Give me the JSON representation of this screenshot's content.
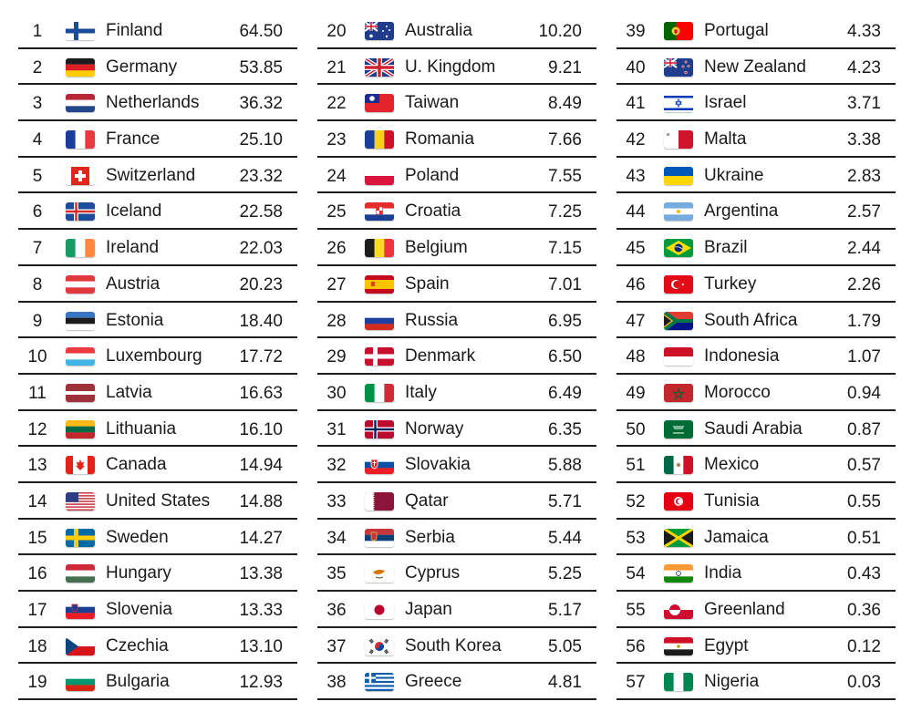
{
  "columns": [
    {
      "rows": [
        {
          "rank": "1",
          "country": "Finland",
          "value": "64.50",
          "flag": "finland-flag-icon"
        },
        {
          "rank": "2",
          "country": "Germany",
          "value": "53.85",
          "flag": "germany-flag-icon"
        },
        {
          "rank": "3",
          "country": "Netherlands",
          "value": "36.32",
          "flag": "netherlands-flag-icon"
        },
        {
          "rank": "4",
          "country": "France",
          "value": "25.10",
          "flag": "france-flag-icon"
        },
        {
          "rank": "5",
          "country": "Switzerland",
          "value": "23.32",
          "flag": "switzerland-flag-icon"
        },
        {
          "rank": "6",
          "country": "Iceland",
          "value": "22.58",
          "flag": "iceland-flag-icon"
        },
        {
          "rank": "7",
          "country": "Ireland",
          "value": "22.03",
          "flag": "ireland-flag-icon"
        },
        {
          "rank": "8",
          "country": "Austria",
          "value": "20.23",
          "flag": "austria-flag-icon"
        },
        {
          "rank": "9",
          "country": "Estonia",
          "value": "18.40",
          "flag": "estonia-flag-icon"
        },
        {
          "rank": "10",
          "country": "Luxembourg",
          "value": "17.72",
          "flag": "luxembourg-flag-icon"
        },
        {
          "rank": "11",
          "country": "Latvia",
          "value": "16.63",
          "flag": "latvia-flag-icon"
        },
        {
          "rank": "12",
          "country": "Lithuania",
          "value": "16.10",
          "flag": "lithuania-flag-icon"
        },
        {
          "rank": "13",
          "country": "Canada",
          "value": "14.94",
          "flag": "canada-flag-icon"
        },
        {
          "rank": "14",
          "country": "United States",
          "value": "14.88",
          "flag": "united-states-flag-icon"
        },
        {
          "rank": "15",
          "country": "Sweden",
          "value": "14.27",
          "flag": "sweden-flag-icon"
        },
        {
          "rank": "16",
          "country": "Hungary",
          "value": "13.38",
          "flag": "hungary-flag-icon"
        },
        {
          "rank": "17",
          "country": "Slovenia",
          "value": "13.33",
          "flag": "slovenia-flag-icon"
        },
        {
          "rank": "18",
          "country": "Czechia",
          "value": "13.10",
          "flag": "czechia-flag-icon"
        },
        {
          "rank": "19",
          "country": "Bulgaria",
          "value": "12.93",
          "flag": "bulgaria-flag-icon"
        }
      ]
    },
    {
      "rows": [
        {
          "rank": "20",
          "country": "Australia",
          "value": "10.20",
          "flag": "australia-flag-icon"
        },
        {
          "rank": "21",
          "country": "U. Kingdom",
          "value": "9.21",
          "flag": "united-kingdom-flag-icon"
        },
        {
          "rank": "22",
          "country": "Taiwan",
          "value": "8.49",
          "flag": "taiwan-flag-icon"
        },
        {
          "rank": "23",
          "country": "Romania",
          "value": "7.66",
          "flag": "romania-flag-icon"
        },
        {
          "rank": "24",
          "country": "Poland",
          "value": "7.55",
          "flag": "poland-flag-icon"
        },
        {
          "rank": "25",
          "country": "Croatia",
          "value": "7.25",
          "flag": "croatia-flag-icon"
        },
        {
          "rank": "26",
          "country": "Belgium",
          "value": "7.15",
          "flag": "belgium-flag-icon"
        },
        {
          "rank": "27",
          "country": "Spain",
          "value": "7.01",
          "flag": "spain-flag-icon"
        },
        {
          "rank": "28",
          "country": "Russia",
          "value": "6.95",
          "flag": "russia-flag-icon"
        },
        {
          "rank": "29",
          "country": "Denmark",
          "value": "6.50",
          "flag": "denmark-flag-icon"
        },
        {
          "rank": "30",
          "country": "Italy",
          "value": "6.49",
          "flag": "italy-flag-icon"
        },
        {
          "rank": "31",
          "country": "Norway",
          "value": "6.35",
          "flag": "norway-flag-icon"
        },
        {
          "rank": "32",
          "country": "Slovakia",
          "value": "5.88",
          "flag": "slovakia-flag-icon"
        },
        {
          "rank": "33",
          "country": "Qatar",
          "value": "5.71",
          "flag": "qatar-flag-icon"
        },
        {
          "rank": "34",
          "country": "Serbia",
          "value": "5.44",
          "flag": "serbia-flag-icon"
        },
        {
          "rank": "35",
          "country": "Cyprus",
          "value": "5.25",
          "flag": "cyprus-flag-icon"
        },
        {
          "rank": "36",
          "country": "Japan",
          "value": "5.17",
          "flag": "japan-flag-icon"
        },
        {
          "rank": "37",
          "country": "South Korea",
          "value": "5.05",
          "flag": "south-korea-flag-icon"
        },
        {
          "rank": "38",
          "country": "Greece",
          "value": "4.81",
          "flag": "greece-flag-icon"
        }
      ]
    },
    {
      "rows": [
        {
          "rank": "39",
          "country": "Portugal",
          "value": "4.33",
          "flag": "portugal-flag-icon"
        },
        {
          "rank": "40",
          "country": "New Zealand",
          "value": "4.23",
          "flag": "new-zealand-flag-icon"
        },
        {
          "rank": "41",
          "country": "Israel",
          "value": "3.71",
          "flag": "israel-flag-icon"
        },
        {
          "rank": "42",
          "country": "Malta",
          "value": "3.38",
          "flag": "malta-flag-icon"
        },
        {
          "rank": "43",
          "country": "Ukraine",
          "value": "2.83",
          "flag": "ukraine-flag-icon"
        },
        {
          "rank": "44",
          "country": "Argentina",
          "value": "2.57",
          "flag": "argentina-flag-icon"
        },
        {
          "rank": "45",
          "country": "Brazil",
          "value": "2.44",
          "flag": "brazil-flag-icon"
        },
        {
          "rank": "46",
          "country": "Turkey",
          "value": "2.26",
          "flag": "turkey-flag-icon"
        },
        {
          "rank": "47",
          "country": "South Africa",
          "value": "1.79",
          "flag": "south-africa-flag-icon"
        },
        {
          "rank": "48",
          "country": "Indonesia",
          "value": "1.07",
          "flag": "indonesia-flag-icon"
        },
        {
          "rank": "49",
          "country": "Morocco",
          "value": "0.94",
          "flag": "morocco-flag-icon"
        },
        {
          "rank": "50",
          "country": "Saudi Arabia",
          "value": "0.87",
          "flag": "saudi-arabia-flag-icon"
        },
        {
          "rank": "51",
          "country": "Mexico",
          "value": "0.57",
          "flag": "mexico-flag-icon"
        },
        {
          "rank": "52",
          "country": "Tunisia",
          "value": "0.55",
          "flag": "tunisia-flag-icon"
        },
        {
          "rank": "53",
          "country": "Jamaica",
          "value": "0.51",
          "flag": "jamaica-flag-icon"
        },
        {
          "rank": "54",
          "country": "India",
          "value": "0.43",
          "flag": "india-flag-icon"
        },
        {
          "rank": "55",
          "country": "Greenland",
          "value": "0.36",
          "flag": "greenland-flag-icon"
        },
        {
          "rank": "56",
          "country": "Egypt",
          "value": "0.12",
          "flag": "egypt-flag-icon"
        },
        {
          "rank": "57",
          "country": "Nigeria",
          "value": "0.03",
          "flag": "nigeria-flag-icon"
        }
      ]
    }
  ]
}
